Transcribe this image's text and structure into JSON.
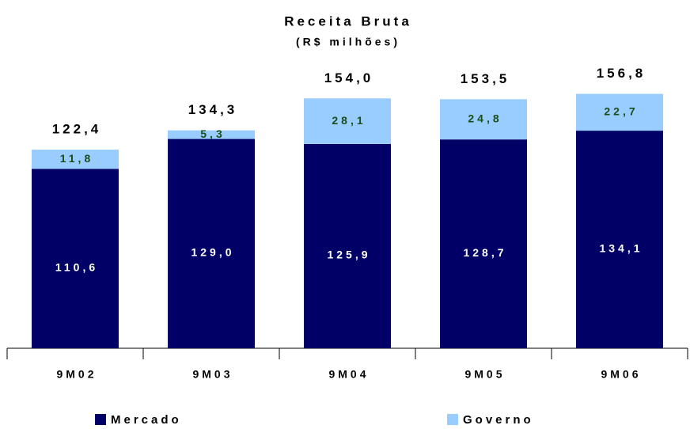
{
  "chart_data": {
    "type": "stacked_bar",
    "title": "Receita Bruta",
    "subtitle": "(R$ milhões)",
    "categories": [
      "9M02",
      "9M03",
      "9M04",
      "9M05",
      "9M06"
    ],
    "series": [
      {
        "name": "Mercado",
        "color": "#000066",
        "values": [
          110.6,
          129.0,
          125.9,
          128.7,
          134.1
        ],
        "value_labels": [
          "110,6",
          "129,0",
          "125,9",
          "128,7",
          "134,1"
        ],
        "label_color": "#ffffff"
      },
      {
        "name": "Governo",
        "color": "#99ccff",
        "values": [
          11.8,
          5.3,
          28.1,
          24.8,
          22.7
        ],
        "value_labels": [
          "11,8",
          "5,3",
          "28,1",
          "24,8",
          "22,7"
        ],
        "label_color": "#1a4d1a"
      }
    ],
    "totals": [
      122.4,
      134.3,
      154.0,
      153.5,
      156.8
    ],
    "total_labels": [
      "122,4",
      "134,3",
      "154,0",
      "153,5",
      "156,8"
    ],
    "ylim": [
      0,
      160
    ]
  }
}
